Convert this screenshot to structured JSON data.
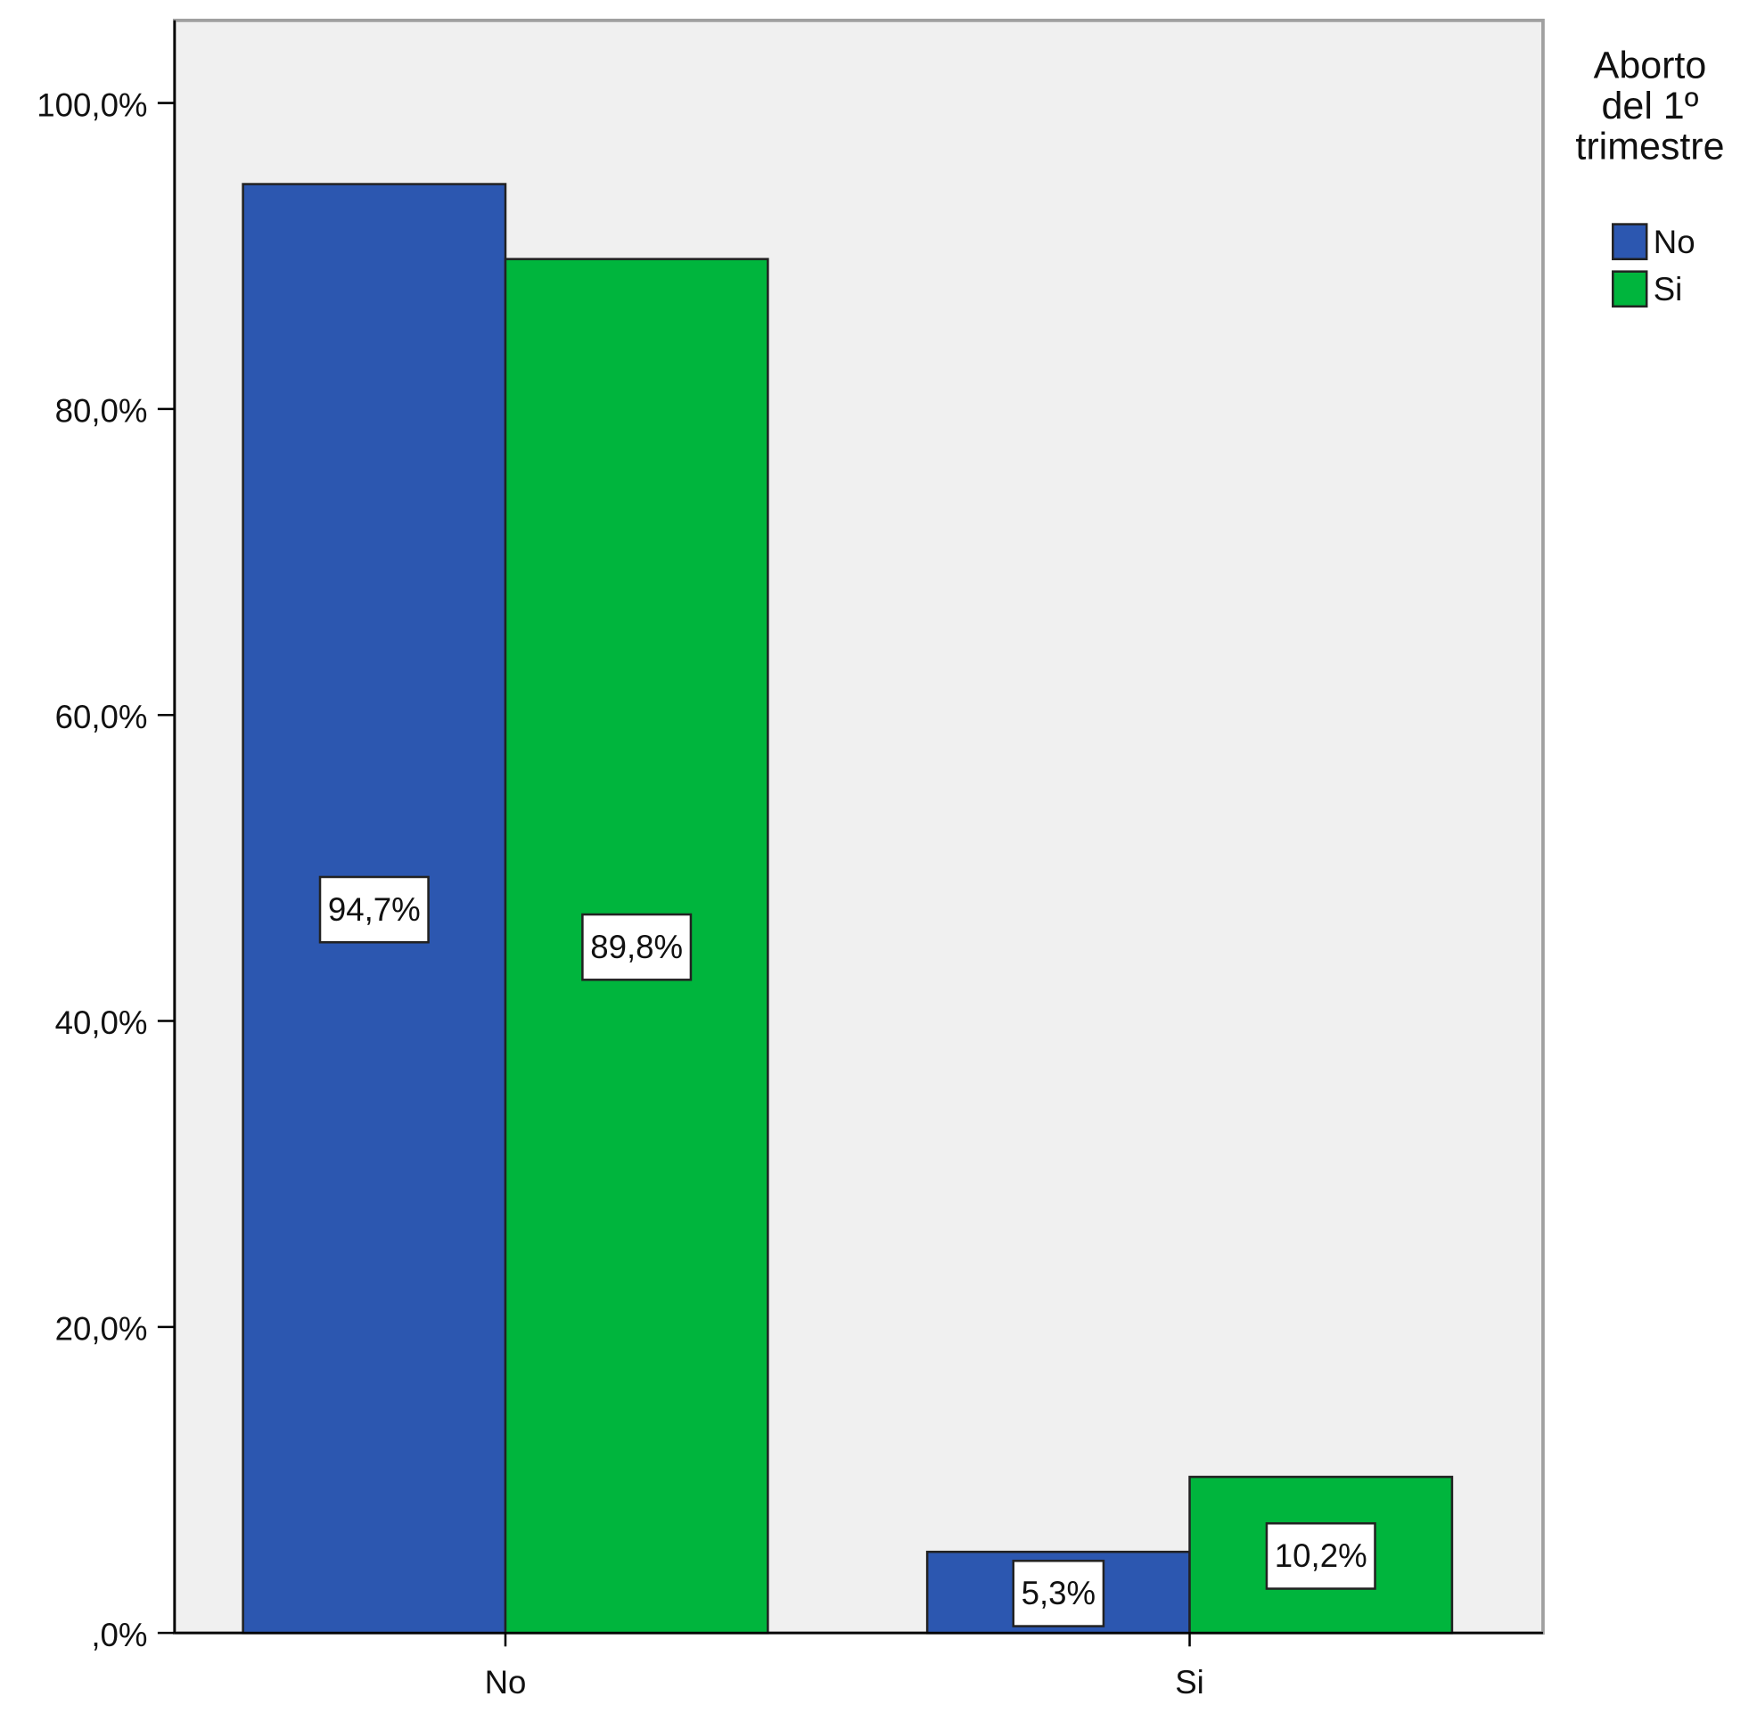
{
  "chart_data": {
    "type": "bar",
    "categories": [
      "No",
      "Si"
    ],
    "legend_title": "Aborto\ndel 1º\ntrimestre",
    "series": [
      {
        "name": "No",
        "color": "#2c57b0",
        "values": [
          94.7,
          5.3
        ],
        "value_labels": [
          "94,7%",
          "5,3%"
        ]
      },
      {
        "name": "Si",
        "color": "#00b53d",
        "values": [
          89.8,
          10.2
        ],
        "value_labels": [
          "89,8%",
          "10,2%"
        ]
      }
    ],
    "ylim": [
      0,
      105.4
    ],
    "yticks": [
      {
        "value": 0,
        "label": ",0%"
      },
      {
        "value": 20,
        "label": "20,0%"
      },
      {
        "value": 40,
        "label": "40,0%"
      },
      {
        "value": 60,
        "label": "60,0%"
      },
      {
        "value": 80,
        "label": "80,0%"
      },
      {
        "value": 100,
        "label": "100,0%"
      }
    ],
    "grid": false,
    "legend": "right"
  }
}
